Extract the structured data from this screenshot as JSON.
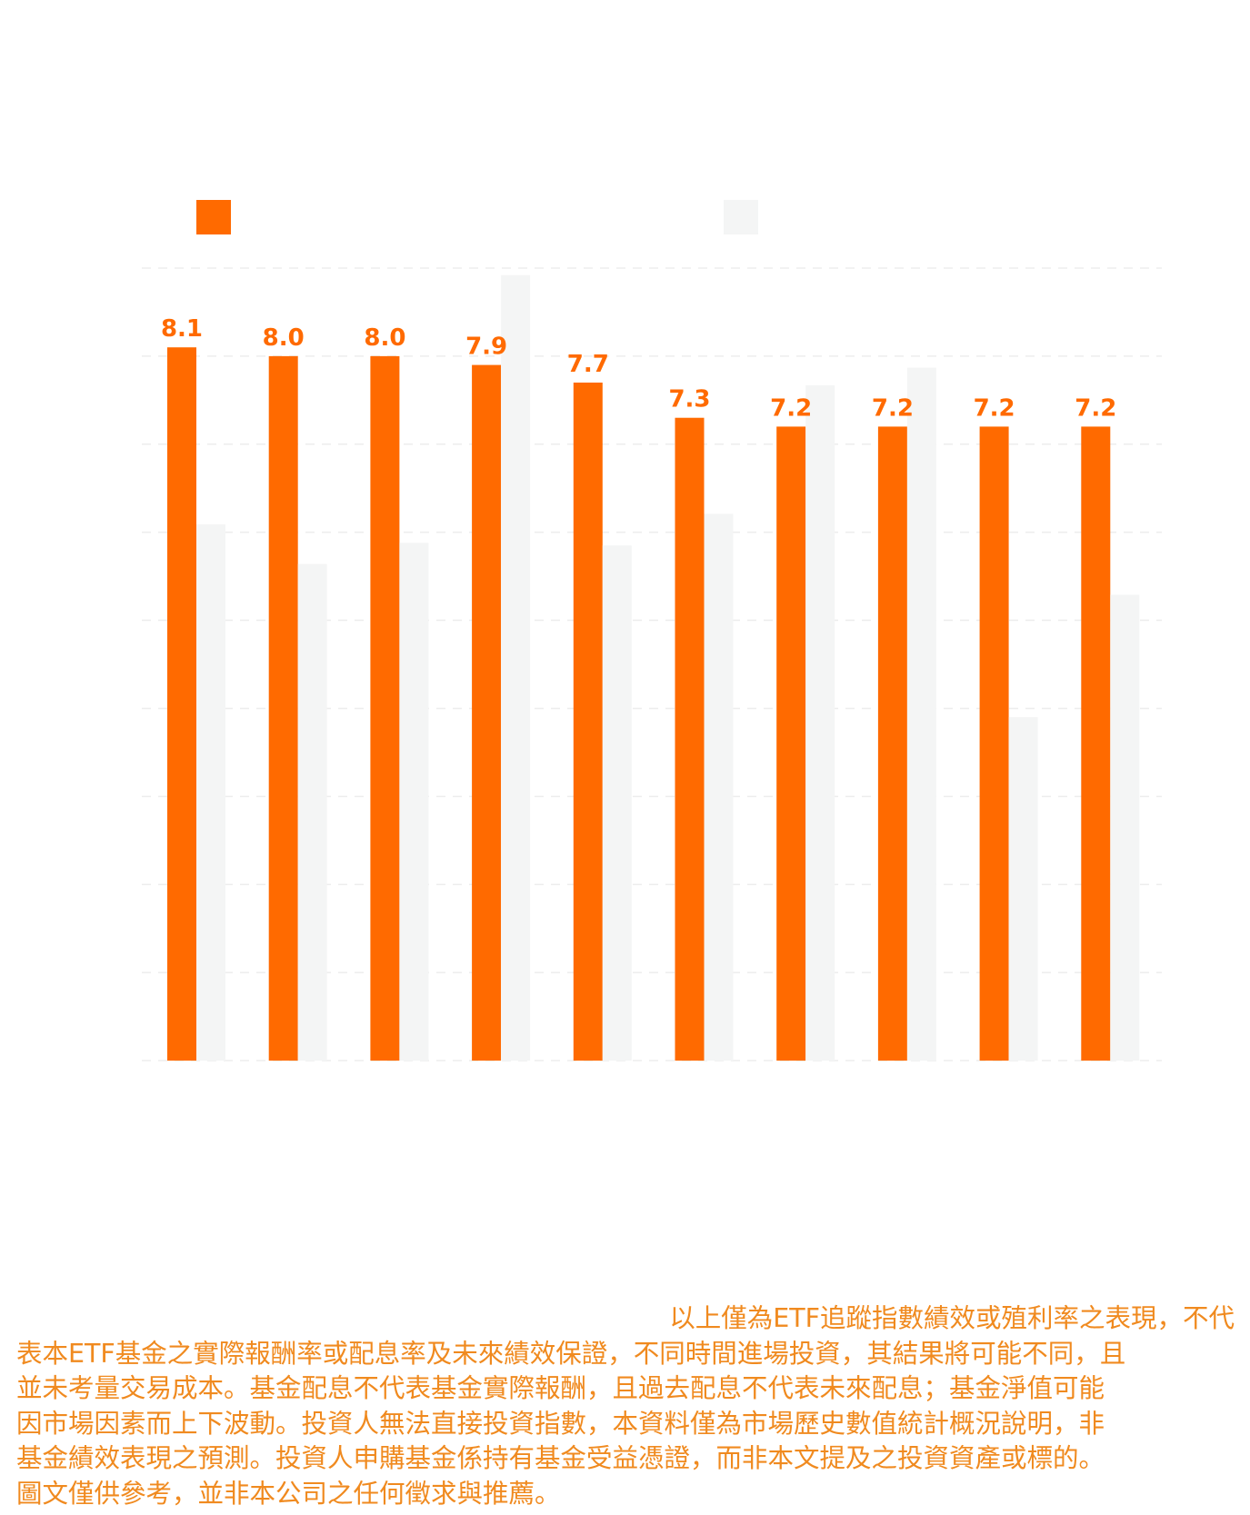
{
  "colors": {
    "series_primary": "#ff6a00",
    "series_secondary": "#f4f5f5",
    "gridline": "#ededed",
    "disclaimer_text": "#f08a1f"
  },
  "legend": [
    {
      "color": "#ff6a00",
      "label": ""
    },
    {
      "color": "#f4f5f5",
      "label": ""
    }
  ],
  "chart_data": {
    "type": "bar",
    "categories": [
      "",
      "",
      "",
      "",
      "",
      "",
      "",
      "",
      "",
      ""
    ],
    "series": [
      {
        "color": "#ff6a00",
        "values": [
          8.1,
          8.0,
          8.0,
          7.9,
          7.7,
          7.3,
          7.2,
          7.2,
          7.2,
          7.2
        ],
        "labels": [
          "8.1",
          "8.0",
          "8.0",
          "7.9",
          "7.7",
          "7.3",
          "7.2",
          "7.2",
          "7.2",
          "7.2"
        ]
      },
      {
        "color": "#f4f5f5",
        "values": [
          6.09,
          5.64,
          5.88,
          8.92,
          5.85,
          6.21,
          7.67,
          7.87,
          3.9,
          5.29
        ]
      }
    ],
    "ylim": [
      0,
      9
    ],
    "grid": true,
    "legend_position": "top"
  },
  "disclaimer": {
    "lines": [
      "以上僅為ETF追蹤指數績效或殖利率之表現，不代",
      "表本ETF基金之實際報酬率或配息率及未來績效保證，不同時間進場投資，其結果將可能不同，且",
      "並未考量交易成本。基金配息不代表基金實際報酬，且過去配息不代表未來配息；基金淨值可能",
      "因市場因素而上下波動。投資人無法直接投資指數，本資料僅為市場歷史數值統計概況說明，非",
      "基金績效表現之預測。投資人申購基金係持有基金受益憑證，而非本文提及之投資資產或標的。",
      "圖文僅供參考，並非本公司之任何徵求與推薦。"
    ]
  }
}
